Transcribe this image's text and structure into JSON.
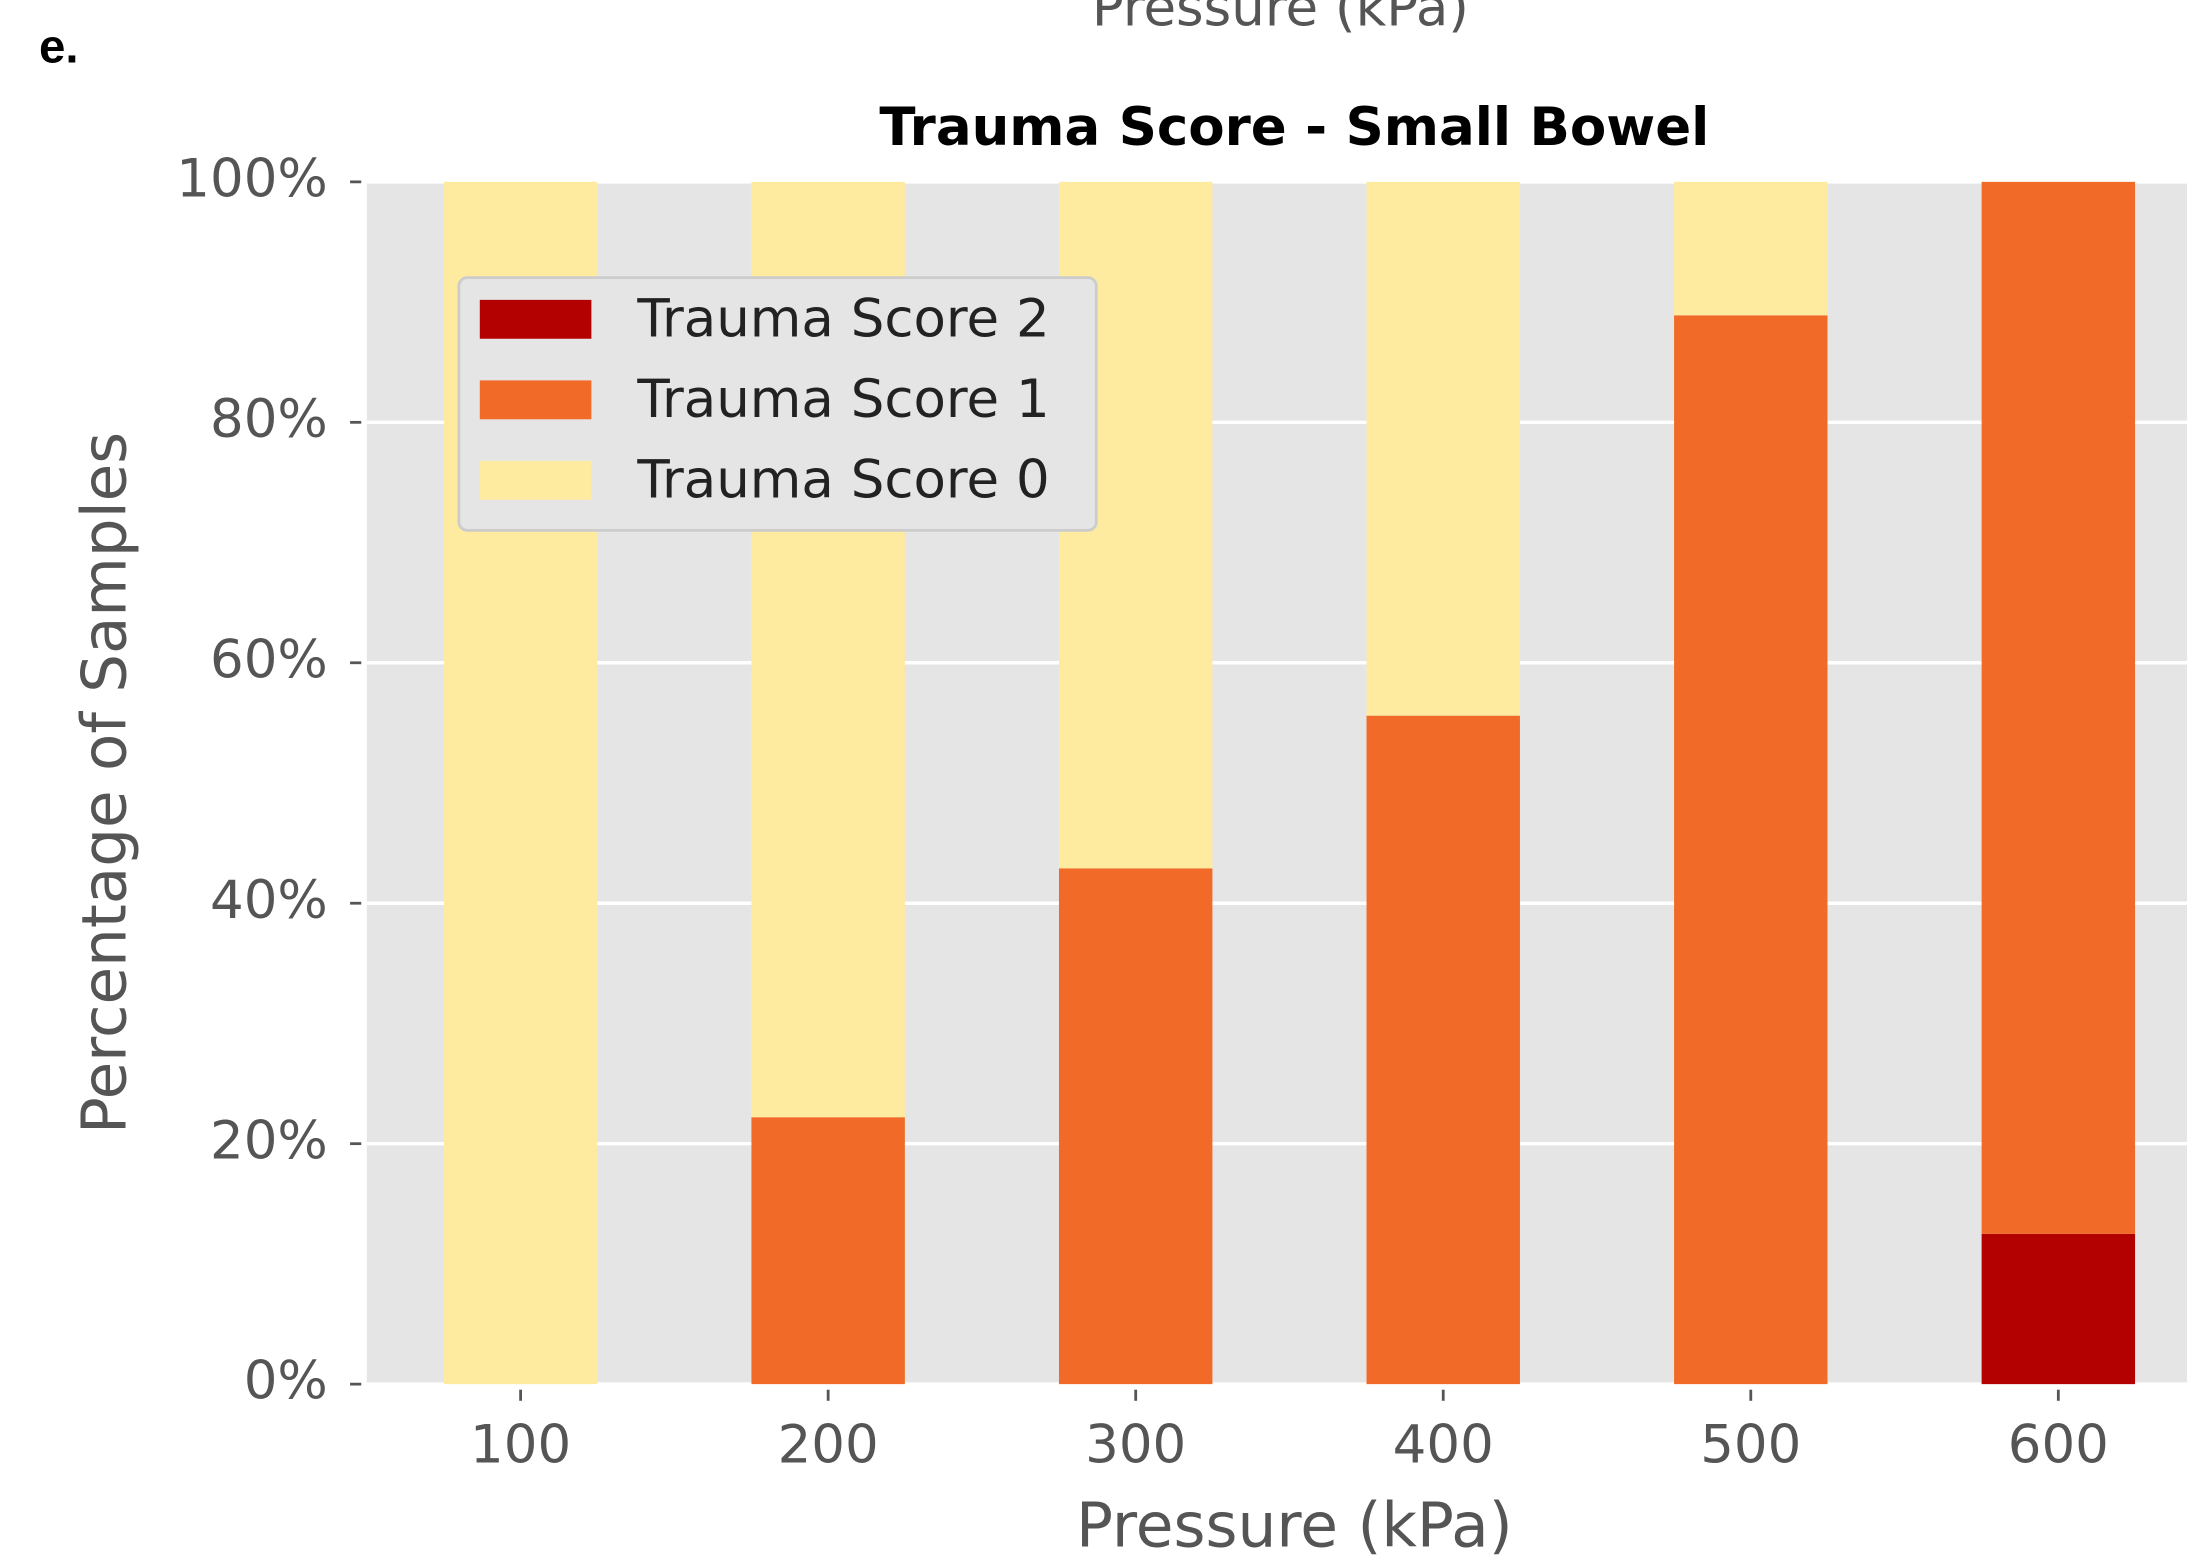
{
  "panel_label": "e.",
  "top_fragment": "Pressure (kPa)",
  "chart_data": {
    "type": "stacked_bar",
    "title": "Trauma Score - Small Bowel",
    "xlabel": "Pressure (kPa)",
    "ylabel": "Percentage of Samples",
    "categories": [
      "100",
      "200",
      "300",
      "400",
      "500",
      "600"
    ],
    "series": [
      {
        "name": "Trauma Score 2",
        "color": "#b30000",
        "values": [
          0,
          0,
          0,
          0,
          0,
          12.5
        ]
      },
      {
        "name": "Trauma Score 1",
        "color": "#f26a27",
        "values": [
          0,
          22.2,
          42.9,
          55.6,
          88.9,
          87.5
        ]
      },
      {
        "name": "Trauma Score 0",
        "color": "#feeba0",
        "values": [
          100,
          77.8,
          57.1,
          44.4,
          11.1,
          0
        ]
      }
    ],
    "ylim": [
      0,
      100
    ],
    "yticks": [
      {
        "value": 0,
        "label": "0%"
      },
      {
        "value": 20,
        "label": "20%"
      },
      {
        "value": 40,
        "label": "40%"
      },
      {
        "value": 60,
        "label": "60%"
      },
      {
        "value": 80,
        "label": "80%"
      },
      {
        "value": 100,
        "label": "100%"
      }
    ],
    "grid": true,
    "legend": "upper left"
  }
}
